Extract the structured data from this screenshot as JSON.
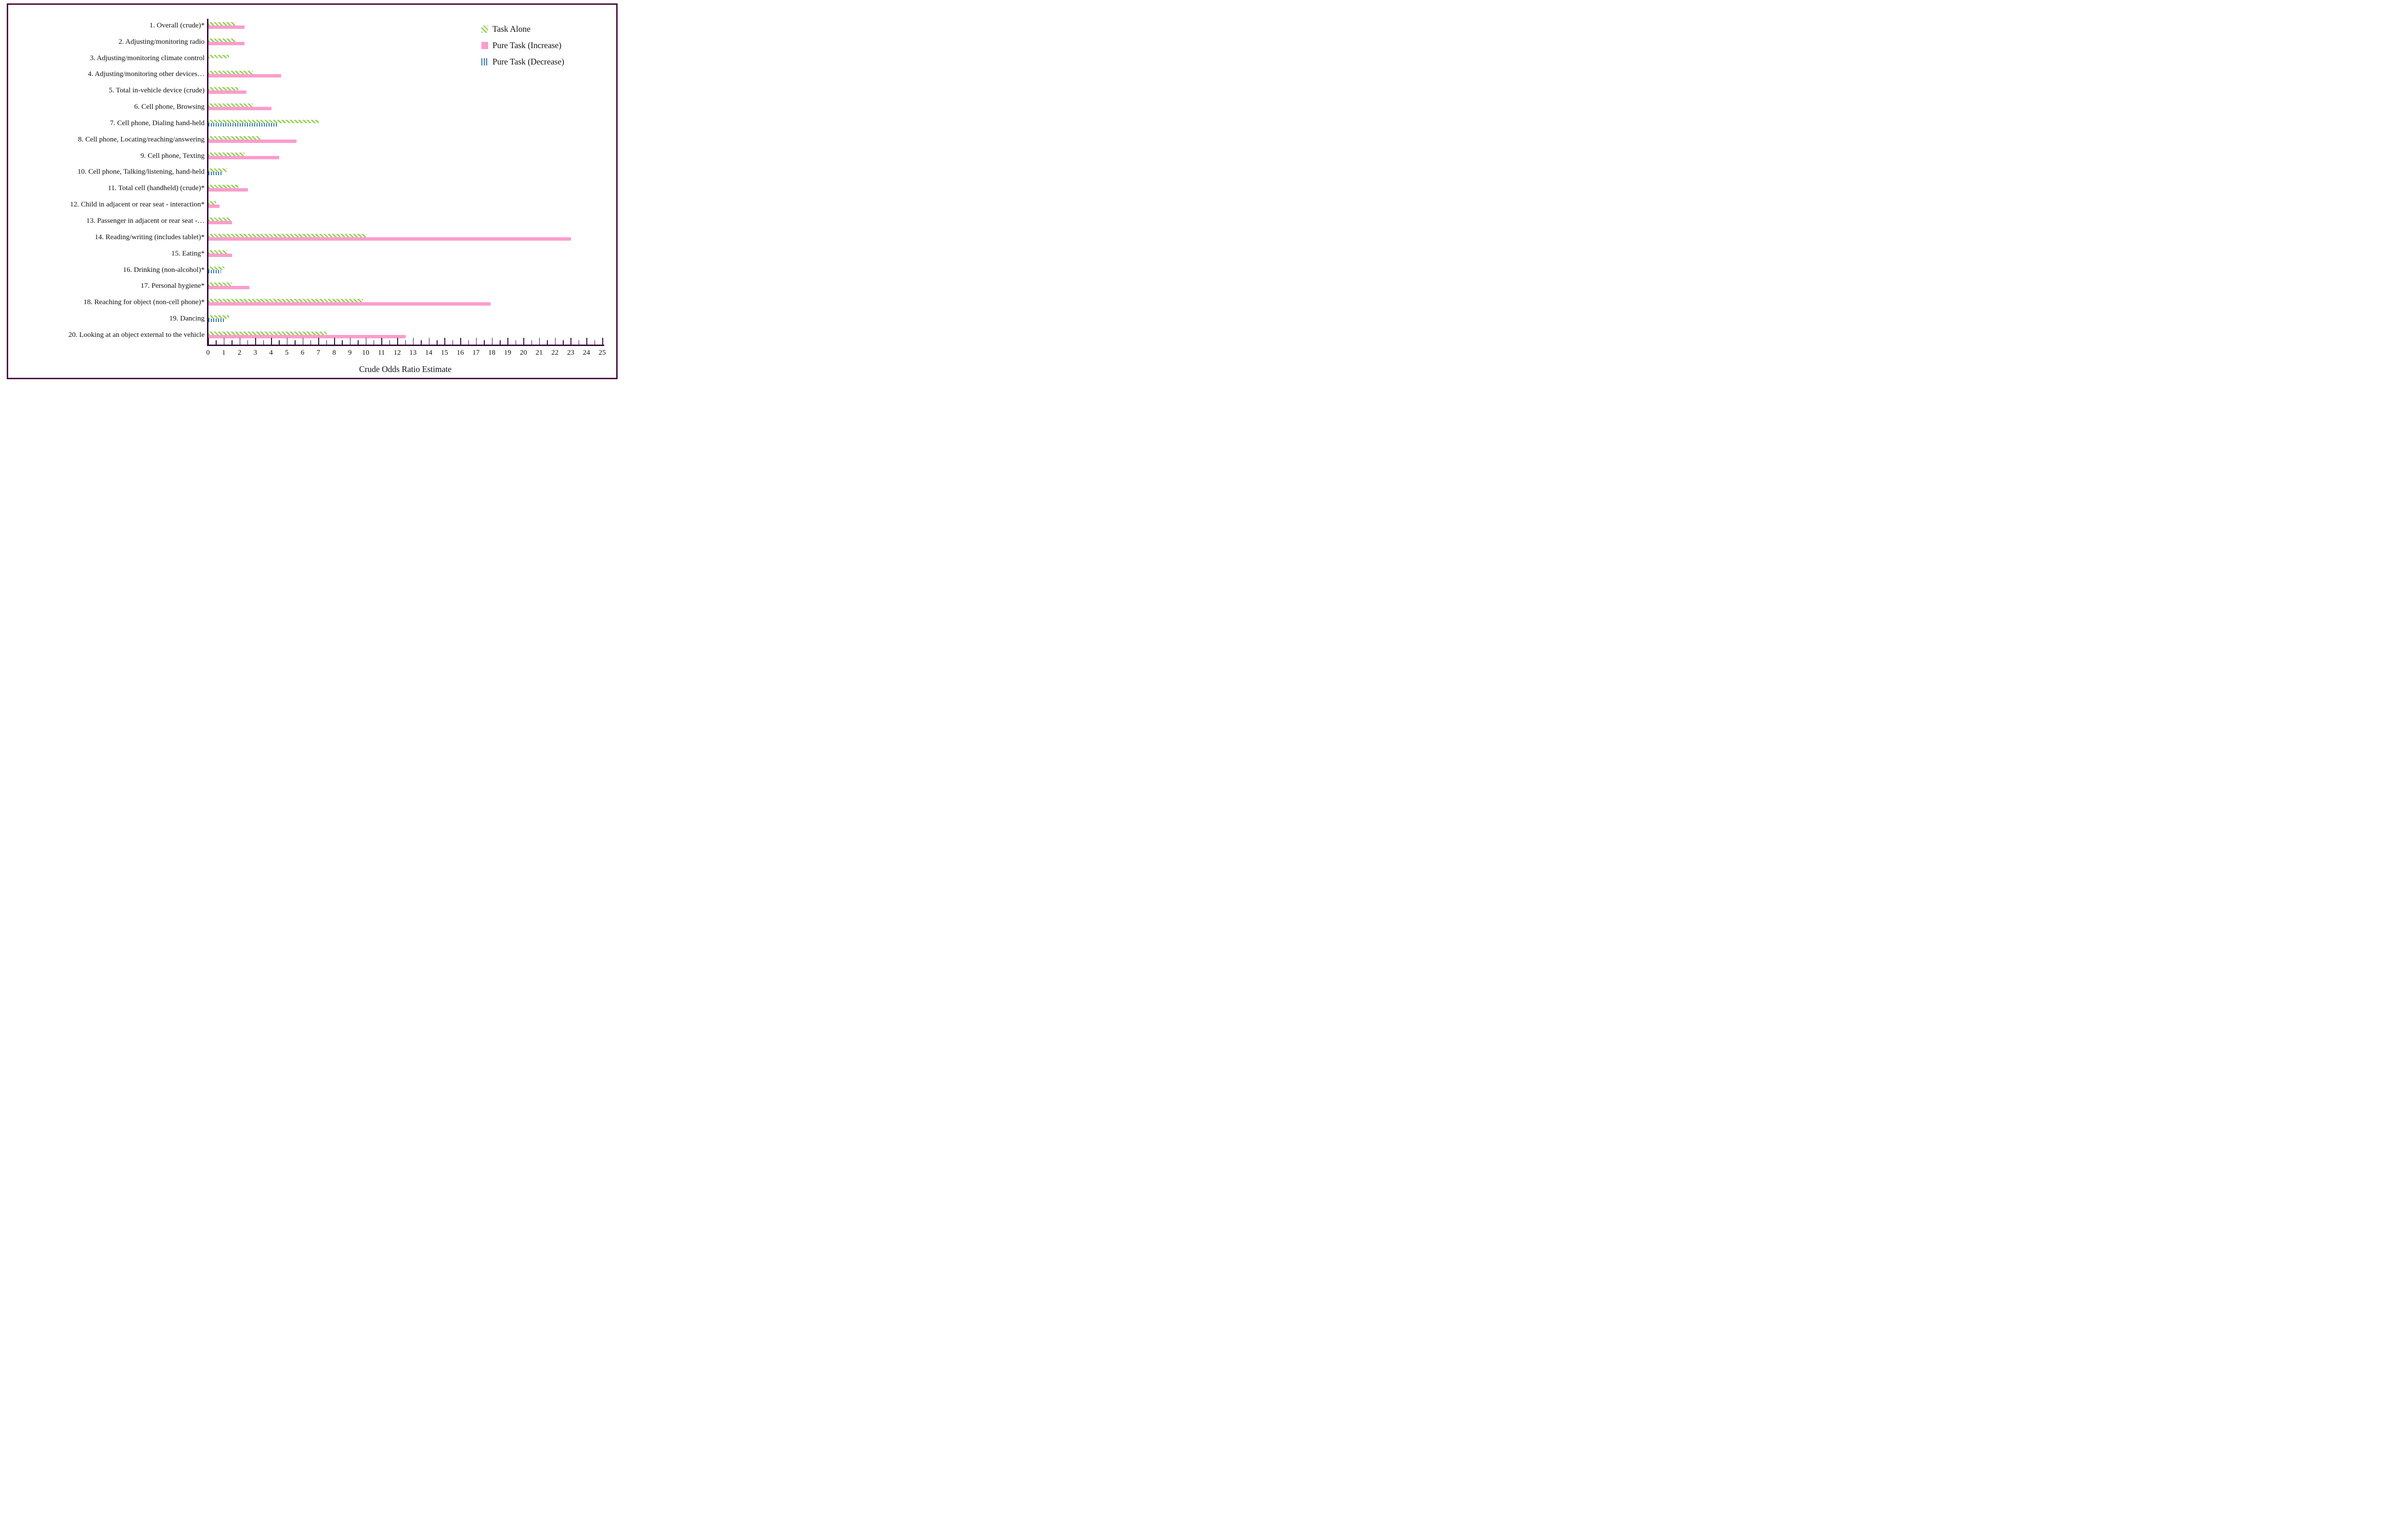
{
  "figure": {
    "border_color": "#4A1143",
    "axis_color": "#38093B",
    "background": "#FFFFFF"
  },
  "chart_data": {
    "type": "bar",
    "orientation": "horizontal",
    "title": "",
    "xlabel": "Crude Odds Ratio Estimate",
    "ylabel": "",
    "xlim": [
      0,
      25
    ],
    "x_major_tick_step": 1,
    "x_minor_tick_step": 0.5,
    "grid": false,
    "legend_position": "top-right",
    "categories": [
      "1. Overall (crude)*",
      "2. Adjusting/monitoring radio",
      "3. Adjusting/monitoring climate control",
      "4. Adjusting/monitoring other devices…",
      "5. Total in-vehicle device (crude)",
      "6. Cell phone, Browsing",
      "7. Cell phone, Dialing hand-held",
      "8. Cell phone, Locating/reaching/answering",
      "9. Cell phone, Texting",
      "10. Cell phone, Talking/listening, hand-held",
      "11. Total cell (handheld) (crude)*",
      "12. Child in adjacent or rear seat - interaction*",
      "13. Passenger in adjacent or rear seat -…",
      "14. Reading/writing (includes tablet)*",
      "15. Eating*",
      "16. Drinking (non-alcohol)*",
      "17. Personal hygiene*",
      "18. Reaching for object (non-cell phone)*",
      "19. Dancing",
      "20. Looking at an object external to the vehicle"
    ],
    "series": [
      {
        "name": "Task Alone",
        "style": "green-diagonal-hatch",
        "color": "#92D050",
        "values": [
          1.7,
          1.7,
          1.3,
          2.8,
          1.9,
          2.8,
          7.0,
          3.3,
          2.3,
          1.2,
          1.9,
          0.5,
          1.4,
          10.0,
          1.2,
          1.0,
          1.5,
          9.8,
          1.3,
          7.5
        ]
      },
      {
        "name": "Pure Task (Increase)",
        "style": "pink-solid",
        "color": "#FB9DCD",
        "values": [
          2.3,
          2.3,
          null,
          4.6,
          2.4,
          4.0,
          null,
          5.6,
          4.5,
          null,
          2.5,
          0.7,
          1.5,
          23.0,
          1.5,
          null,
          2.6,
          17.9,
          null,
          12.5
        ]
      },
      {
        "name": "Pure Task (Decrease)",
        "style": "blue-vertical-hatch",
        "color": "#2E75B6",
        "values": [
          null,
          null,
          null,
          null,
          null,
          null,
          4.4,
          null,
          null,
          0.9,
          null,
          null,
          null,
          null,
          null,
          0.8,
          null,
          null,
          1.0,
          null
        ]
      }
    ]
  }
}
